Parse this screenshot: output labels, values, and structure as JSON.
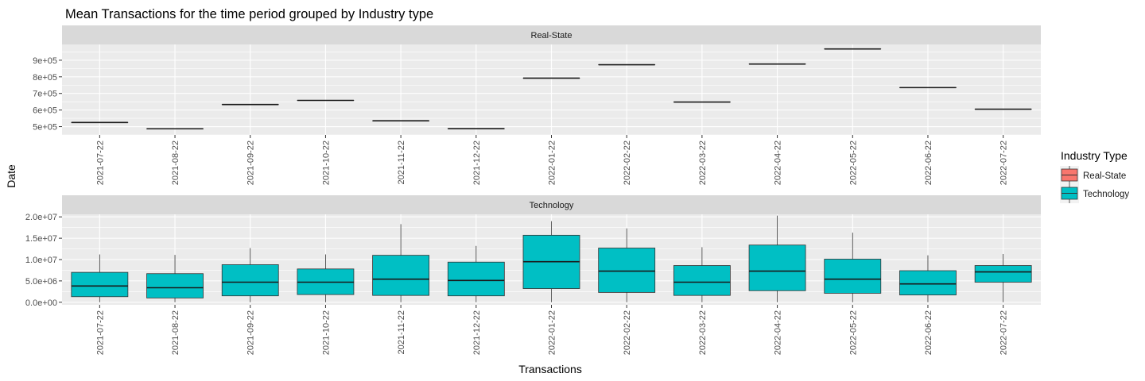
{
  "chart_data": {
    "type": "boxplot",
    "title": "Mean Transactions for the time period grouped by Industry type",
    "xlabel": "Transactions",
    "ylabel": "Date",
    "categories": [
      "2021-07-22",
      "2021-08-22",
      "2021-09-22",
      "2021-10-22",
      "2021-11-22",
      "2021-12-22",
      "2022-01-22",
      "2022-02-22",
      "2022-03-22",
      "2022-04-22",
      "2022-05-22",
      "2022-06-22",
      "2022-07-22"
    ],
    "legend": {
      "title": "Industry Type",
      "position": "right",
      "entries": [
        {
          "label": "Real-State",
          "color": "#F8766D"
        },
        {
          "label": "Technology",
          "color": "#00BFC4"
        }
      ]
    },
    "grid": true,
    "facets": [
      {
        "label": "Real-State",
        "series": "Real-State",
        "color": "#F8766D",
        "ylim": [
          450000,
          995000
        ],
        "yticks": [
          500000,
          600000,
          700000,
          800000,
          900000
        ],
        "ytick_labels": [
          "5e+05",
          "6e+05",
          "7e+05",
          "8e+05",
          "9e+05"
        ],
        "boxes": [
          {
            "min": 525000,
            "q1": 525000,
            "median": 525000,
            "q3": 525000,
            "max": 525000
          },
          {
            "min": 487000,
            "q1": 487000,
            "median": 487000,
            "q3": 487000,
            "max": 487000
          },
          {
            "min": 633000,
            "q1": 633000,
            "median": 633000,
            "q3": 633000,
            "max": 633000
          },
          {
            "min": 658000,
            "q1": 658000,
            "median": 658000,
            "q3": 658000,
            "max": 658000
          },
          {
            "min": 535000,
            "q1": 535000,
            "median": 535000,
            "q3": 535000,
            "max": 535000
          },
          {
            "min": 488000,
            "q1": 488000,
            "median": 488000,
            "q3": 488000,
            "max": 488000
          },
          {
            "min": 792000,
            "q1": 792000,
            "median": 792000,
            "q3": 792000,
            "max": 792000
          },
          {
            "min": 873000,
            "q1": 873000,
            "median": 873000,
            "q3": 873000,
            "max": 873000
          },
          {
            "min": 648000,
            "q1": 648000,
            "median": 648000,
            "q3": 648000,
            "max": 648000
          },
          {
            "min": 877000,
            "q1": 877000,
            "median": 877000,
            "q3": 877000,
            "max": 877000
          },
          {
            "min": 968000,
            "q1": 968000,
            "median": 968000,
            "q3": 968000,
            "max": 968000
          },
          {
            "min": 735000,
            "q1": 735000,
            "median": 735000,
            "q3": 735000,
            "max": 735000
          },
          {
            "min": 605000,
            "q1": 605000,
            "median": 605000,
            "q3": 605000,
            "max": 605000
          }
        ]
      },
      {
        "label": "Technology",
        "series": "Technology",
        "color": "#00BFC4",
        "ylim": [
          -600000,
          20600000
        ],
        "yticks": [
          0,
          5000000,
          10000000,
          15000000,
          20000000
        ],
        "ytick_labels": [
          "0.0e+00",
          "5.0e+06",
          "1.0e+07",
          "1.5e+07",
          "2.0e+07"
        ],
        "boxes": [
          {
            "min": 0,
            "q1": 1300000,
            "median": 3800000,
            "q3": 7000000,
            "max": 11200000
          },
          {
            "min": 0,
            "q1": 1000000,
            "median": 3400000,
            "q3": 6700000,
            "max": 11100000
          },
          {
            "min": 0,
            "q1": 1500000,
            "median": 4700000,
            "q3": 8800000,
            "max": 12700000
          },
          {
            "min": 0,
            "q1": 1800000,
            "median": 4700000,
            "q3": 7800000,
            "max": 11200000
          },
          {
            "min": 0,
            "q1": 1600000,
            "median": 5400000,
            "q3": 11000000,
            "max": 18300000
          },
          {
            "min": 0,
            "q1": 1500000,
            "median": 5100000,
            "q3": 9400000,
            "max": 13200000
          },
          {
            "min": 0,
            "q1": 3200000,
            "median": 9500000,
            "q3": 15700000,
            "max": 19000000
          },
          {
            "min": 0,
            "q1": 2300000,
            "median": 7300000,
            "q3": 12700000,
            "max": 17300000
          },
          {
            "min": 0,
            "q1": 1600000,
            "median": 4700000,
            "q3": 8600000,
            "max": 12900000
          },
          {
            "min": 0,
            "q1": 2700000,
            "median": 7300000,
            "q3": 13400000,
            "max": 20300000
          },
          {
            "min": 0,
            "q1": 2100000,
            "median": 5400000,
            "q3": 10100000,
            "max": 16300000
          },
          {
            "min": 0,
            "q1": 1700000,
            "median": 4300000,
            "q3": 7400000,
            "max": 11000000
          },
          {
            "min": 0,
            "q1": 4700000,
            "median": 7100000,
            "q3": 8600000,
            "max": 11300000
          }
        ]
      }
    ]
  }
}
